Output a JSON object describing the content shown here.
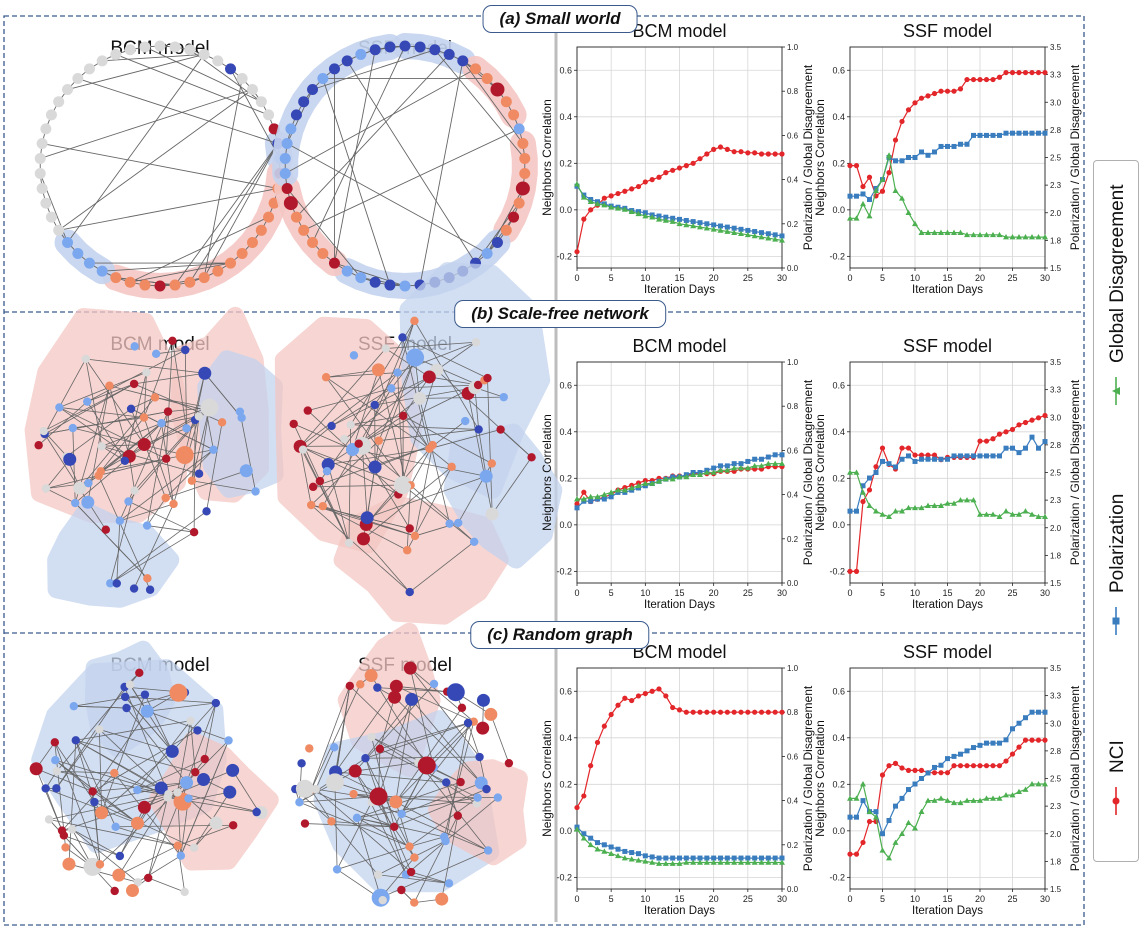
{
  "rows": [
    {
      "label": "(a) Small world"
    },
    {
      "label": "(b) Scale-free network"
    },
    {
      "label": "(c) Random graph"
    }
  ],
  "network_titles": [
    "BCM model",
    "SSF model"
  ],
  "colors": {
    "NCI": "#e3262a",
    "Polarization": "#3a7dbf",
    "Global Disagreement": "#4caf50",
    "node_dark_red": "#b2182b",
    "node_salmon": "#ef8a62",
    "node_grey": "#d9d9d9",
    "node_light_blue": "#7ba7ef",
    "node_blue": "#3548b5",
    "hull_red": "#f4c7c3",
    "hull_blue": "#c4d3ee",
    "frame": "#3a5a8c"
  },
  "legend": [
    {
      "name": "NCI",
      "marker": "circle"
    },
    {
      "name": "Polarization",
      "marker": "square"
    },
    {
      "name": "Global Disagreement",
      "marker": "triangle"
    }
  ],
  "chart_data": [
    {
      "id": "a-bcm",
      "type": "line",
      "title": "BCM model",
      "xlabel": "Iteration Days",
      "ylabel": "Neighbors Correlation",
      "ylabel_right": "Polarization / Global Disagreement",
      "xlim": [
        0,
        30
      ],
      "ylim": [
        -0.25,
        0.7
      ],
      "ylim_right": [
        0.0,
        1.0
      ],
      "xticks": [
        0,
        5,
        10,
        15,
        20,
        25,
        30
      ],
      "yticks": [
        -0.2,
        0.0,
        0.2,
        0.4,
        0.6
      ],
      "yticks_right": [
        0.0,
        0.2,
        0.4,
        0.6,
        0.8,
        1.0
      ],
      "grid": true,
      "series": [
        {
          "name": "NCI",
          "axis": "left",
          "values": [
            -0.18,
            -0.04,
            0.0,
            0.02,
            0.05,
            0.06,
            0.07,
            0.08,
            0.09,
            0.1,
            0.12,
            0.13,
            0.14,
            0.16,
            0.17,
            0.18,
            0.19,
            0.2,
            0.22,
            0.24,
            0.26,
            0.27,
            0.26,
            0.25,
            0.25,
            0.245,
            0.245,
            0.24,
            0.24,
            0.24,
            0.24
          ]
        },
        {
          "name": "Polarization",
          "axis": "right",
          "values": [
            0.37,
            0.33,
            0.31,
            0.3,
            0.29,
            0.28,
            0.275,
            0.27,
            0.26,
            0.255,
            0.25,
            0.24,
            0.235,
            0.23,
            0.225,
            0.22,
            0.215,
            0.21,
            0.205,
            0.2,
            0.195,
            0.19,
            0.185,
            0.18,
            0.175,
            0.17,
            0.165,
            0.16,
            0.155,
            0.15,
            0.145
          ]
        },
        {
          "name": "Global Disagreement",
          "axis": "right",
          "values": [
            0.38,
            0.32,
            0.3,
            0.29,
            0.285,
            0.275,
            0.27,
            0.265,
            0.255,
            0.245,
            0.235,
            0.23,
            0.22,
            0.215,
            0.21,
            0.2,
            0.195,
            0.19,
            0.185,
            0.18,
            0.175,
            0.17,
            0.165,
            0.16,
            0.155,
            0.15,
            0.145,
            0.14,
            0.135,
            0.13,
            0.125
          ]
        }
      ]
    },
    {
      "id": "a-ssf",
      "type": "line",
      "title": "SSF model",
      "xlabel": "Iteration Days",
      "ylabel": "Neighbors Correlation",
      "ylabel_right": "Polarization / Global Disagreement",
      "xlim": [
        0,
        30
      ],
      "ylim": [
        -0.25,
        0.7
      ],
      "ylim_right": [
        1.5,
        3.5
      ],
      "xticks": [
        0,
        5,
        10,
        15,
        20,
        25,
        30
      ],
      "yticks": [
        -0.2,
        0.0,
        0.2,
        0.4,
        0.6
      ],
      "yticks_right": [
        1.5,
        1.75,
        2.0,
        2.25,
        2.5,
        2.75,
        3.0,
        3.25,
        3.5
      ],
      "grid": true,
      "series": [
        {
          "name": "NCI",
          "axis": "left",
          "values": [
            0.19,
            0.19,
            0.1,
            0.14,
            0.06,
            0.08,
            0.16,
            0.3,
            0.38,
            0.43,
            0.46,
            0.48,
            0.49,
            0.5,
            0.51,
            0.51,
            0.51,
            0.52,
            0.56,
            0.56,
            0.56,
            0.56,
            0.56,
            0.57,
            0.59,
            0.59,
            0.59,
            0.59,
            0.59,
            0.59,
            0.59
          ]
        },
        {
          "name": "Polarization",
          "axis": "right",
          "values": [
            2.15,
            2.15,
            2.17,
            2.12,
            2.22,
            2.3,
            2.5,
            2.47,
            2.47,
            2.5,
            2.5,
            2.55,
            2.52,
            2.55,
            2.6,
            2.6,
            2.6,
            2.62,
            2.62,
            2.7,
            2.7,
            2.7,
            2.7,
            2.7,
            2.72,
            2.72,
            2.72,
            2.72,
            2.72,
            2.72,
            2.72
          ]
        },
        {
          "name": "Global Disagreement",
          "axis": "right",
          "values": [
            1.95,
            1.95,
            2.08,
            1.97,
            2.2,
            2.3,
            2.52,
            2.2,
            2.13,
            2.0,
            1.9,
            1.82,
            1.82,
            1.82,
            1.82,
            1.82,
            1.82,
            1.82,
            1.8,
            1.8,
            1.8,
            1.8,
            1.8,
            1.8,
            1.78,
            1.78,
            1.78,
            1.78,
            1.78,
            1.78,
            1.78
          ]
        }
      ]
    },
    {
      "id": "b-bcm",
      "type": "line",
      "title": "BCM model",
      "xlabel": "Iteration Days",
      "ylabel": "Neighbors Correlation",
      "ylabel_right": "Polarization / Global Disagreement",
      "xlim": [
        0,
        30
      ],
      "ylim": [
        -0.25,
        0.7
      ],
      "ylim_right": [
        0.0,
        1.0
      ],
      "xticks": [
        0,
        5,
        10,
        15,
        20,
        25,
        30
      ],
      "yticks": [
        -0.2,
        0.0,
        0.2,
        0.4,
        0.6
      ],
      "yticks_right": [
        0.0,
        0.2,
        0.4,
        0.6,
        0.8,
        1.0
      ],
      "grid": true,
      "series": [
        {
          "name": "NCI",
          "axis": "left",
          "values": [
            0.09,
            0.14,
            0.1,
            0.11,
            0.12,
            0.13,
            0.15,
            0.16,
            0.17,
            0.18,
            0.19,
            0.19,
            0.2,
            0.2,
            0.21,
            0.21,
            0.21,
            0.22,
            0.22,
            0.22,
            0.22,
            0.23,
            0.23,
            0.23,
            0.24,
            0.24,
            0.24,
            0.24,
            0.25,
            0.25,
            0.25
          ]
        },
        {
          "name": "Polarization",
          "axis": "right",
          "values": [
            0.34,
            0.37,
            0.37,
            0.38,
            0.38,
            0.39,
            0.41,
            0.41,
            0.42,
            0.43,
            0.44,
            0.45,
            0.46,
            0.47,
            0.48,
            0.48,
            0.49,
            0.5,
            0.5,
            0.51,
            0.52,
            0.53,
            0.53,
            0.54,
            0.54,
            0.55,
            0.56,
            0.56,
            0.57,
            0.58,
            0.58
          ]
        },
        {
          "name": "Global Disagreement",
          "axis": "right",
          "values": [
            0.38,
            0.38,
            0.39,
            0.39,
            0.4,
            0.41,
            0.42,
            0.42,
            0.43,
            0.44,
            0.45,
            0.45,
            0.46,
            0.47,
            0.47,
            0.48,
            0.48,
            0.49,
            0.49,
            0.5,
            0.5,
            0.51,
            0.51,
            0.52,
            0.52,
            0.52,
            0.53,
            0.53,
            0.54,
            0.54,
            0.54
          ]
        }
      ]
    },
    {
      "id": "b-ssf",
      "type": "line",
      "title": "SSF model",
      "xlabel": "Iteration Days",
      "ylabel": "Neighbors Correlation",
      "ylabel_right": "Polarization / Global Disagreement",
      "xlim": [
        0,
        30
      ],
      "ylim": [
        -0.25,
        0.7
      ],
      "ylim_right": [
        1.5,
        3.5
      ],
      "xticks": [
        0,
        5,
        10,
        15,
        20,
        25,
        30
      ],
      "yticks": [
        -0.2,
        0.0,
        0.2,
        0.4,
        0.6
      ],
      "yticks_right": [
        1.5,
        1.75,
        2.0,
        2.25,
        2.5,
        2.75,
        3.0,
        3.25,
        3.5
      ],
      "grid": true,
      "series": [
        {
          "name": "NCI",
          "axis": "left",
          "values": [
            -0.2,
            -0.2,
            0.1,
            0.15,
            0.25,
            0.33,
            0.26,
            0.24,
            0.33,
            0.33,
            0.3,
            0.3,
            0.3,
            0.3,
            0.28,
            0.29,
            0.29,
            0.29,
            0.29,
            0.29,
            0.36,
            0.36,
            0.37,
            0.39,
            0.4,
            0.41,
            0.43,
            0.44,
            0.45,
            0.46,
            0.47
          ]
        },
        {
          "name": "Polarization",
          "axis": "right",
          "values": [
            2.15,
            2.15,
            2.38,
            2.45,
            2.5,
            2.6,
            2.58,
            2.55,
            2.62,
            2.65,
            2.6,
            2.62,
            2.62,
            2.62,
            2.62,
            2.62,
            2.65,
            2.65,
            2.65,
            2.65,
            2.65,
            2.65,
            2.65,
            2.65,
            2.72,
            2.72,
            2.68,
            2.72,
            2.82,
            2.72,
            2.78
          ]
        },
        {
          "name": "Global Disagreement",
          "axis": "right",
          "values": [
            2.5,
            2.5,
            2.32,
            2.2,
            2.15,
            2.12,
            2.1,
            2.15,
            2.15,
            2.18,
            2.18,
            2.18,
            2.2,
            2.2,
            2.2,
            2.22,
            2.22,
            2.25,
            2.25,
            2.25,
            2.12,
            2.12,
            2.12,
            2.1,
            2.15,
            2.12,
            2.12,
            2.15,
            2.12,
            2.1,
            2.1
          ]
        }
      ]
    },
    {
      "id": "c-bcm",
      "type": "line",
      "title": "BCM model",
      "xlabel": "Iteration Days",
      "ylabel": "Neighbors Correlation",
      "ylabel_right": "Polarization / Global Disagreement",
      "xlim": [
        0,
        30
      ],
      "ylim": [
        -0.25,
        0.7
      ],
      "ylim_right": [
        0.0,
        1.0
      ],
      "xticks": [
        0,
        5,
        10,
        15,
        20,
        25,
        30
      ],
      "yticks": [
        -0.2,
        0.0,
        0.2,
        0.4,
        0.6
      ],
      "yticks_right": [
        0.0,
        0.2,
        0.4,
        0.6,
        0.8,
        1.0
      ],
      "grid": true,
      "series": [
        {
          "name": "NCI",
          "axis": "left",
          "values": [
            0.1,
            0.15,
            0.28,
            0.38,
            0.45,
            0.5,
            0.54,
            0.57,
            0.56,
            0.58,
            0.59,
            0.6,
            0.61,
            0.58,
            0.53,
            0.52,
            0.51,
            0.51,
            0.51,
            0.51,
            0.51,
            0.51,
            0.51,
            0.51,
            0.51,
            0.51,
            0.51,
            0.51,
            0.51,
            0.51,
            0.51
          ]
        },
        {
          "name": "Polarization",
          "axis": "right",
          "values": [
            0.28,
            0.25,
            0.23,
            0.21,
            0.2,
            0.19,
            0.18,
            0.17,
            0.165,
            0.16,
            0.15,
            0.145,
            0.14,
            0.14,
            0.14,
            0.14,
            0.14,
            0.14,
            0.14,
            0.14,
            0.14,
            0.14,
            0.14,
            0.14,
            0.14,
            0.14,
            0.14,
            0.14,
            0.14,
            0.14,
            0.14
          ]
        },
        {
          "name": "Global Disagreement",
          "axis": "right",
          "values": [
            0.27,
            0.23,
            0.2,
            0.18,
            0.17,
            0.16,
            0.15,
            0.14,
            0.135,
            0.13,
            0.125,
            0.12,
            0.115,
            0.115,
            0.115,
            0.115,
            0.12,
            0.12,
            0.12,
            0.12,
            0.12,
            0.12,
            0.12,
            0.12,
            0.12,
            0.12,
            0.12,
            0.12,
            0.12,
            0.12,
            0.12
          ]
        }
      ]
    },
    {
      "id": "c-ssf",
      "type": "line",
      "title": "SSF model",
      "xlabel": "Iteration Days",
      "ylabel": "Neighbors Correlation",
      "ylabel_right": "Polarization / Global Disagreement",
      "xlim": [
        0,
        30
      ],
      "ylim": [
        -0.25,
        0.7
      ],
      "ylim_right": [
        1.5,
        3.5
      ],
      "xticks": [
        0,
        5,
        10,
        15,
        20,
        25,
        30
      ],
      "yticks": [
        -0.2,
        0.0,
        0.2,
        0.4,
        0.6
      ],
      "yticks_right": [
        1.5,
        1.75,
        2.0,
        2.25,
        2.5,
        2.75,
        3.0,
        3.25,
        3.5
      ],
      "grid": true,
      "series": [
        {
          "name": "NCI",
          "axis": "left",
          "values": [
            -0.1,
            -0.1,
            -0.05,
            0.04,
            0.04,
            0.24,
            0.28,
            0.29,
            0.27,
            0.26,
            0.26,
            0.26,
            0.25,
            0.25,
            0.25,
            0.25,
            0.28,
            0.28,
            0.28,
            0.28,
            0.28,
            0.28,
            0.28,
            0.28,
            0.3,
            0.33,
            0.36,
            0.39,
            0.39,
            0.39,
            0.39
          ]
        },
        {
          "name": "Polarization",
          "axis": "right",
          "values": [
            2.15,
            2.15,
            2.3,
            2.2,
            2.2,
            2.0,
            2.12,
            2.25,
            2.32,
            2.4,
            2.45,
            2.5,
            2.55,
            2.6,
            2.62,
            2.68,
            2.7,
            2.72,
            2.75,
            2.78,
            2.8,
            2.82,
            2.82,
            2.82,
            2.85,
            2.95,
            3.0,
            3.05,
            3.1,
            3.1,
            3.1
          ]
        },
        {
          "name": "Global Disagreement",
          "axis": "right",
          "values": [
            2.32,
            2.32,
            2.45,
            2.2,
            2.15,
            1.85,
            1.78,
            1.92,
            2.0,
            2.1,
            2.05,
            2.2,
            2.3,
            2.3,
            2.32,
            2.3,
            2.28,
            2.28,
            2.3,
            2.3,
            2.3,
            2.32,
            2.32,
            2.32,
            2.35,
            2.35,
            2.38,
            2.4,
            2.45,
            2.45,
            2.45
          ]
        }
      ]
    }
  ]
}
